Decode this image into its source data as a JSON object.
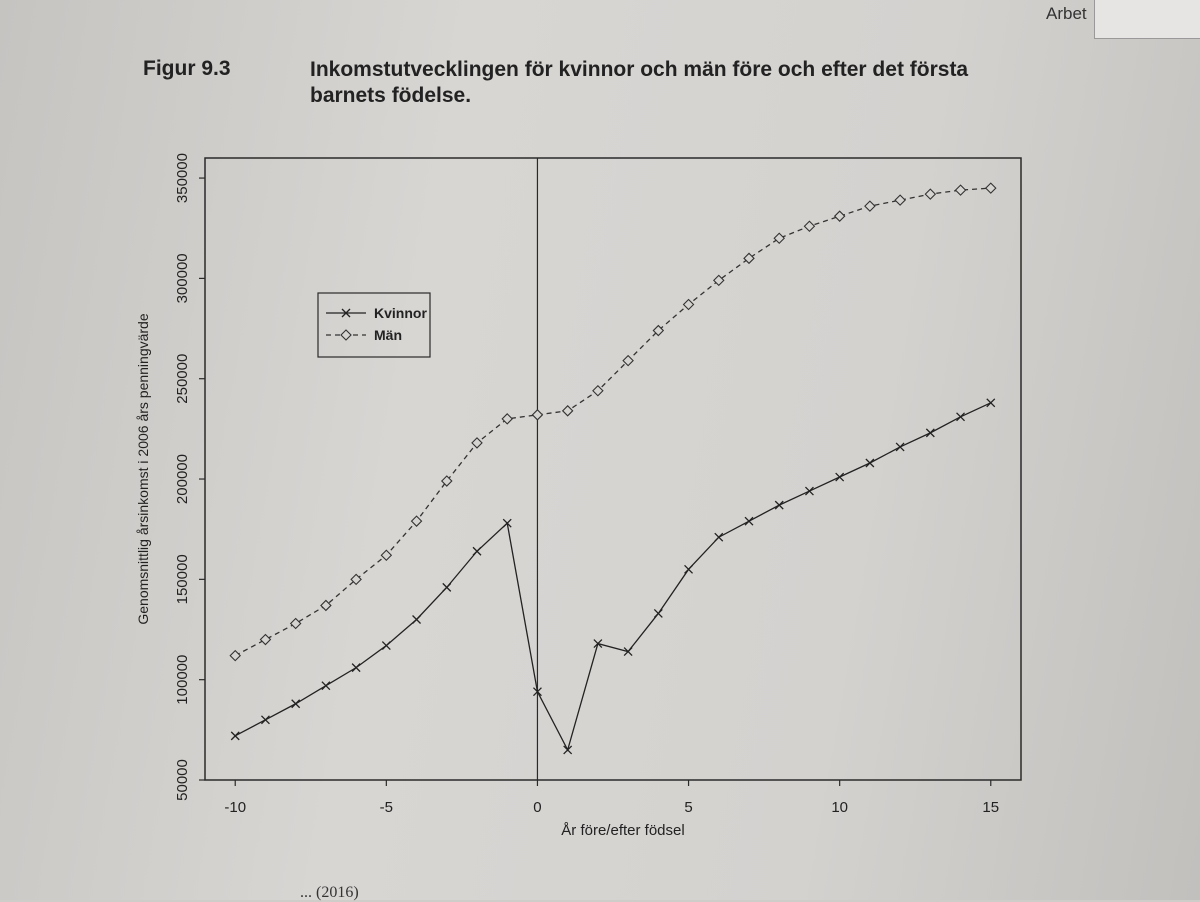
{
  "page": {
    "running_head": "Arbet",
    "figure_label": "Figur 9.3",
    "figure_title": "Inkomstutvecklingen för kvinnor och män före och efter det första barnets födelse.",
    "source": "... (2016)"
  },
  "chart_data": {
    "type": "line",
    "title": "",
    "xlabel": "År före/efter födsel",
    "ylabel": "Genomsnittlig årsinkomst i 2006 års penningvärde",
    "xlim": [
      -11,
      16
    ],
    "ylim": [
      50000,
      360000
    ],
    "xticks": [
      -10,
      -5,
      0,
      5,
      10,
      15
    ],
    "yticks": [
      50000,
      100000,
      150000,
      200000,
      250000,
      300000,
      350000
    ],
    "reference_line_x": 0,
    "legend": {
      "placement": "top-left"
    },
    "x": [
      -10,
      -9,
      -8,
      -7,
      -6,
      -5,
      -4,
      -3,
      -2,
      -1,
      0,
      1,
      2,
      3,
      4,
      5,
      6,
      7,
      8,
      9,
      10,
      11,
      12,
      13,
      14,
      15
    ],
    "series": [
      {
        "name": "Kvinnor",
        "marker": "x",
        "line": "solid",
        "color": "#222222",
        "values": [
          72000,
          80000,
          88000,
          97000,
          106000,
          117000,
          130000,
          146000,
          164000,
          178000,
          94000,
          65000,
          118000,
          114000,
          133000,
          155000,
          171000,
          179000,
          187000,
          194000,
          201000,
          208000,
          216000,
          223000,
          231000,
          238000
        ]
      },
      {
        "name": "Män",
        "marker": "diamond",
        "line": "dashed",
        "color": "#333333",
        "values": [
          112000,
          120000,
          128000,
          137000,
          150000,
          162000,
          179000,
          199000,
          218000,
          230000,
          232000,
          234000,
          244000,
          259000,
          274000,
          287000,
          299000,
          310000,
          320000,
          326000,
          331000,
          336000,
          339000,
          342000,
          344000,
          345000
        ]
      }
    ]
  }
}
